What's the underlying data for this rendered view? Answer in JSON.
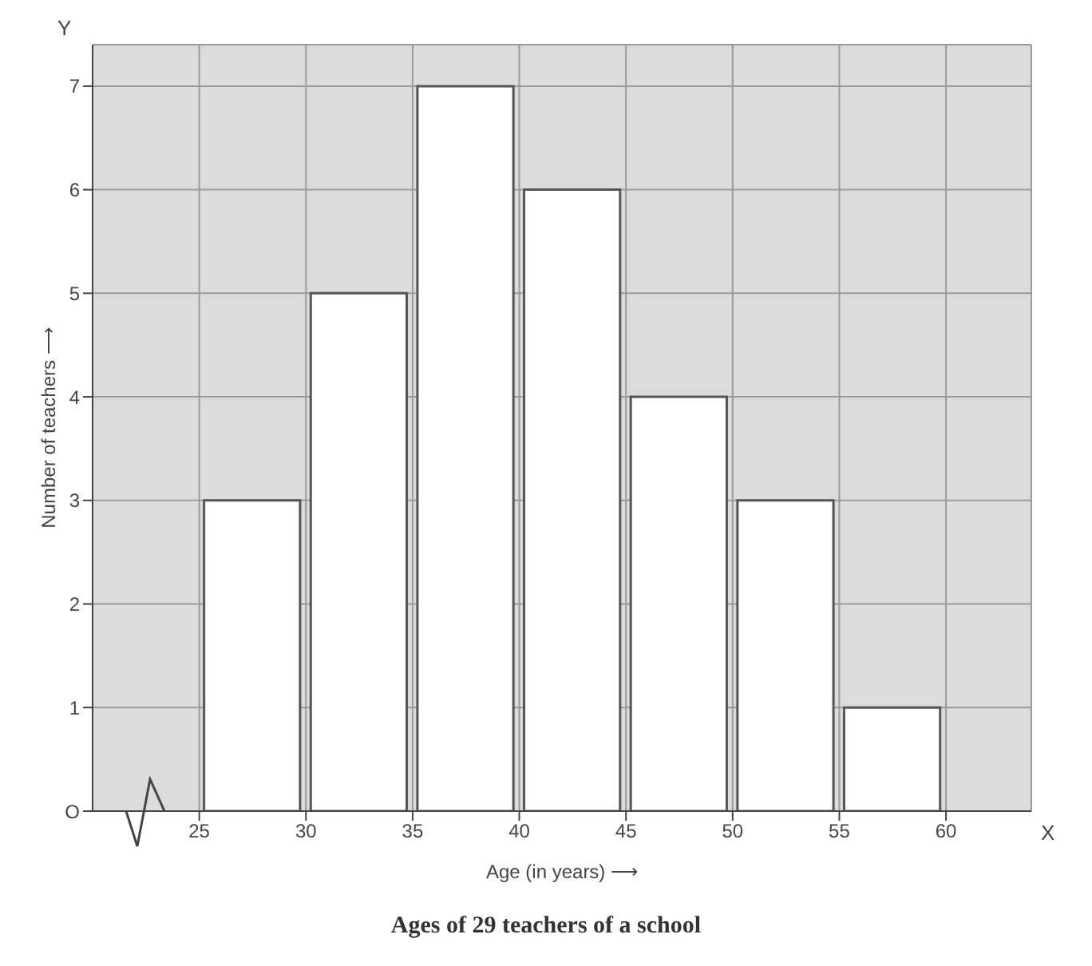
{
  "chart_data": {
    "type": "histogram",
    "title": "Ages of 29 teachers of a school",
    "xlabel": "Age (in years) ⟶",
    "ylabel": "Number of teachers ⟶",
    "bins": [
      25,
      30,
      35,
      40,
      45,
      50,
      55,
      60
    ],
    "values": [
      3,
      5,
      7,
      6,
      4,
      3,
      1
    ],
    "color": "#ffffff",
    "xlim": [
      20,
      64
    ],
    "xticks": [
      25,
      30,
      35,
      40,
      45,
      50,
      55,
      60
    ],
    "ylim": [
      0,
      7.4
    ],
    "yticks": [
      {
        "value": 0,
        "label": "O"
      },
      1,
      2,
      3,
      4,
      5,
      6,
      7
    ],
    "grid": true,
    "annotations": [
      "X",
      "Y"
    ]
  }
}
